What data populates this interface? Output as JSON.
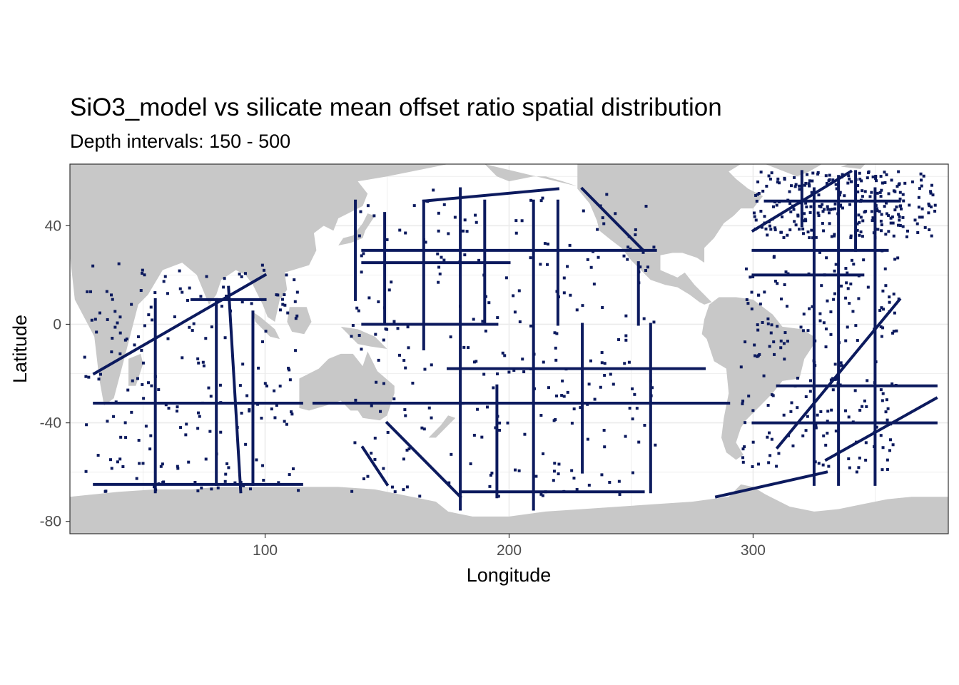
{
  "chart_data": {
    "type": "map",
    "title": "SiO3_model vs silicate mean offset ratio spatial distribution",
    "subtitle": "Depth intervals: 150 - 500",
    "xlabel": "Longitude",
    "ylabel": "Latitude",
    "xlim": [
      20,
      380
    ],
    "ylim": [
      -85,
      65
    ],
    "x_ticks": [
      100,
      200,
      300
    ],
    "y_ticks": [
      -80,
      -40,
      0,
      40
    ],
    "grid": true,
    "legend": "none",
    "colors": {
      "land": "#c8c8c8",
      "ocean": "#ffffff",
      "observations": "#0c1a5e",
      "grid": "#ebebeb",
      "panel_border": "#333333"
    },
    "transect_lines": [
      {
        "from": [
          140,
          30
        ],
        "to": [
          260,
          30
        ]
      },
      {
        "from": [
          140,
          25
        ],
        "to": [
          200,
          25
        ]
      },
      {
        "from": [
          70,
          10
        ],
        "to": [
          100,
          10
        ]
      },
      {
        "from": [
          30,
          -20
        ],
        "to": [
          100,
          20
        ]
      },
      {
        "from": [
          30,
          -32
        ],
        "to": [
          115,
          -32
        ]
      },
      {
        "from": [
          120,
          -32
        ],
        "to": [
          290,
          -32
        ]
      },
      {
        "from": [
          175,
          -18
        ],
        "to": [
          280,
          -18
        ]
      },
      {
        "from": [
          310,
          -25
        ],
        "to": [
          375,
          -25
        ]
      },
      {
        "from": [
          300,
          -40
        ],
        "to": [
          375,
          -40
        ]
      },
      {
        "from": [
          300,
          30
        ],
        "to": [
          355,
          30
        ]
      },
      {
        "from": [
          300,
          20
        ],
        "to": [
          345,
          20
        ]
      },
      {
        "from": [
          180,
          -68
        ],
        "to": [
          255,
          -68
        ]
      },
      {
        "from": [
          30,
          -65
        ],
        "to": [
          115,
          -65
        ]
      },
      {
        "from": [
          140,
          -50
        ],
        "to": [
          150,
          -65
        ]
      },
      {
        "from": [
          137,
          10
        ],
        "to": [
          137,
          50
        ]
      },
      {
        "from": [
          149,
          0
        ],
        "to": [
          149,
          45
        ]
      },
      {
        "from": [
          165,
          -10
        ],
        "to": [
          165,
          50
        ]
      },
      {
        "from": [
          180,
          -75
        ],
        "to": [
          180,
          55
        ]
      },
      {
        "from": [
          190,
          0
        ],
        "to": [
          190,
          50
        ]
      },
      {
        "from": [
          210,
          -75
        ],
        "to": [
          210,
          50
        ]
      },
      {
        "from": [
          220,
          0
        ],
        "to": [
          220,
          50
        ]
      },
      {
        "from": [
          230,
          -60
        ],
        "to": [
          230,
          0
        ]
      },
      {
        "from": [
          253,
          0
        ],
        "to": [
          253,
          25
        ]
      },
      {
        "from": [
          258,
          -68
        ],
        "to": [
          258,
          0
        ]
      },
      {
        "from": [
          80,
          -65
        ],
        "to": [
          80,
          10
        ]
      },
      {
        "from": [
          95,
          -65
        ],
        "to": [
          95,
          5
        ]
      },
      {
        "from": [
          90,
          -68
        ],
        "to": [
          85,
          15
        ]
      },
      {
        "from": [
          55,
          -68
        ],
        "to": [
          55,
          10
        ]
      },
      {
        "from": [
          325,
          -65
        ],
        "to": [
          325,
          55
        ]
      },
      {
        "from": [
          335,
          -65
        ],
        "to": [
          335,
          60
        ]
      },
      {
        "from": [
          350,
          -65
        ],
        "to": [
          350,
          55
        ]
      },
      {
        "from": [
          342,
          30
        ],
        "to": [
          342,
          62
        ]
      },
      {
        "from": [
          320,
          40
        ],
        "to": [
          320,
          62
        ]
      },
      {
        "from": [
          305,
          50
        ],
        "to": [
          360,
          50
        ]
      },
      {
        "from": [
          300,
          38
        ],
        "to": [
          340,
          62
        ]
      },
      {
        "from": [
          310,
          -50
        ],
        "to": [
          360,
          10
        ]
      },
      {
        "from": [
          330,
          -55
        ],
        "to": [
          375,
          -30
        ]
      },
      {
        "from": [
          285,
          -70
        ],
        "to": [
          330,
          -60
        ]
      },
      {
        "from": [
          150,
          -40
        ],
        "to": [
          180,
          -70
        ]
      },
      {
        "from": [
          195,
          -25
        ],
        "to": [
          195,
          -70
        ]
      },
      {
        "from": [
          140,
          0
        ],
        "to": [
          195,
          0
        ]
      },
      {
        "from": [
          230,
          55
        ],
        "to": [
          255,
          30
        ]
      },
      {
        "from": [
          165,
          50
        ],
        "to": [
          220,
          55
        ]
      }
    ]
  }
}
